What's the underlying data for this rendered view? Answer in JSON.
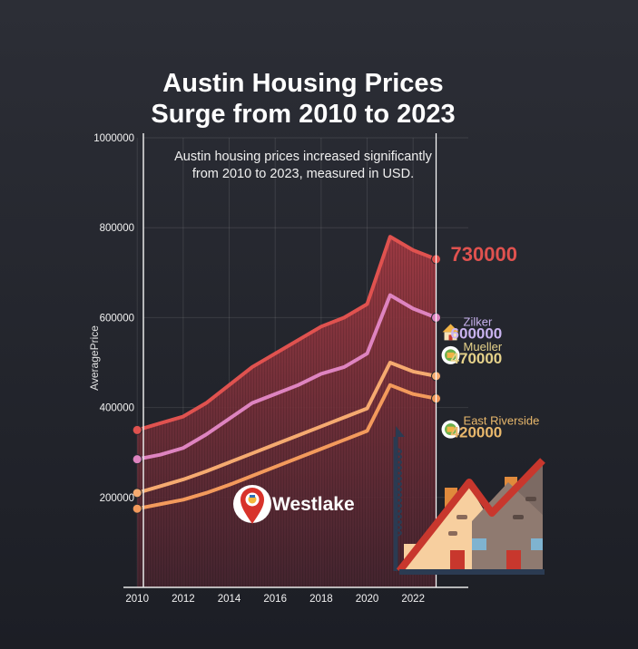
{
  "chart_data": {
    "type": "area",
    "title_lines": [
      "Austin Housing Prices",
      "Surge from 2010 to 2023"
    ],
    "subtitle_lines": [
      "Austin housing prices increased significantly",
      "from 2010 to 2023, measured in USD."
    ],
    "xlabel": "",
    "ylabel": "AveragePrice",
    "xlim": [
      2009.4,
      2024.4
    ],
    "ylim": [
      0,
      1000000
    ],
    "x_ticks": [
      2010,
      2012,
      2014,
      2016,
      2018,
      2020,
      2022
    ],
    "y_ticks": [
      200000,
      400000,
      600000,
      800000,
      1000000
    ],
    "grid": true,
    "x": [
      2010,
      2011,
      2012,
      2013,
      2014,
      2015,
      2016,
      2017,
      2018,
      2019,
      2020,
      2021,
      2022,
      2023
    ],
    "series": [
      {
        "name": "",
        "label": "730000",
        "color": "#e0524f",
        "values": [
          350000,
          365000,
          380000,
          410000,
          450000,
          490000,
          520000,
          550000,
          580000,
          600000,
          630000,
          780000,
          750000,
          730000
        ]
      },
      {
        "name": "Zilker",
        "label": "600000",
        "color": "#de84c0",
        "values": [
          285000,
          295000,
          310000,
          340000,
          375000,
          410000,
          430000,
          450000,
          475000,
          490000,
          520000,
          650000,
          620000,
          600000
        ]
      },
      {
        "name": "Mueller",
        "label": "470000",
        "color": "#f5aa70",
        "values": [
          210000,
          225000,
          240000,
          258000,
          278000,
          298000,
          318000,
          338000,
          358000,
          378000,
          398000,
          500000,
          480000,
          470000
        ]
      },
      {
        "name": "East Riverside",
        "label": "420000",
        "color": "#f39a5c",
        "values": [
          175000,
          185000,
          195000,
          210000,
          228000,
          248000,
          268000,
          288000,
          308000,
          328000,
          348000,
          450000,
          430000,
          420000
        ]
      }
    ],
    "annotations": [
      {
        "text": "Westlake",
        "icon": "map-pin-icon"
      }
    ]
  }
}
